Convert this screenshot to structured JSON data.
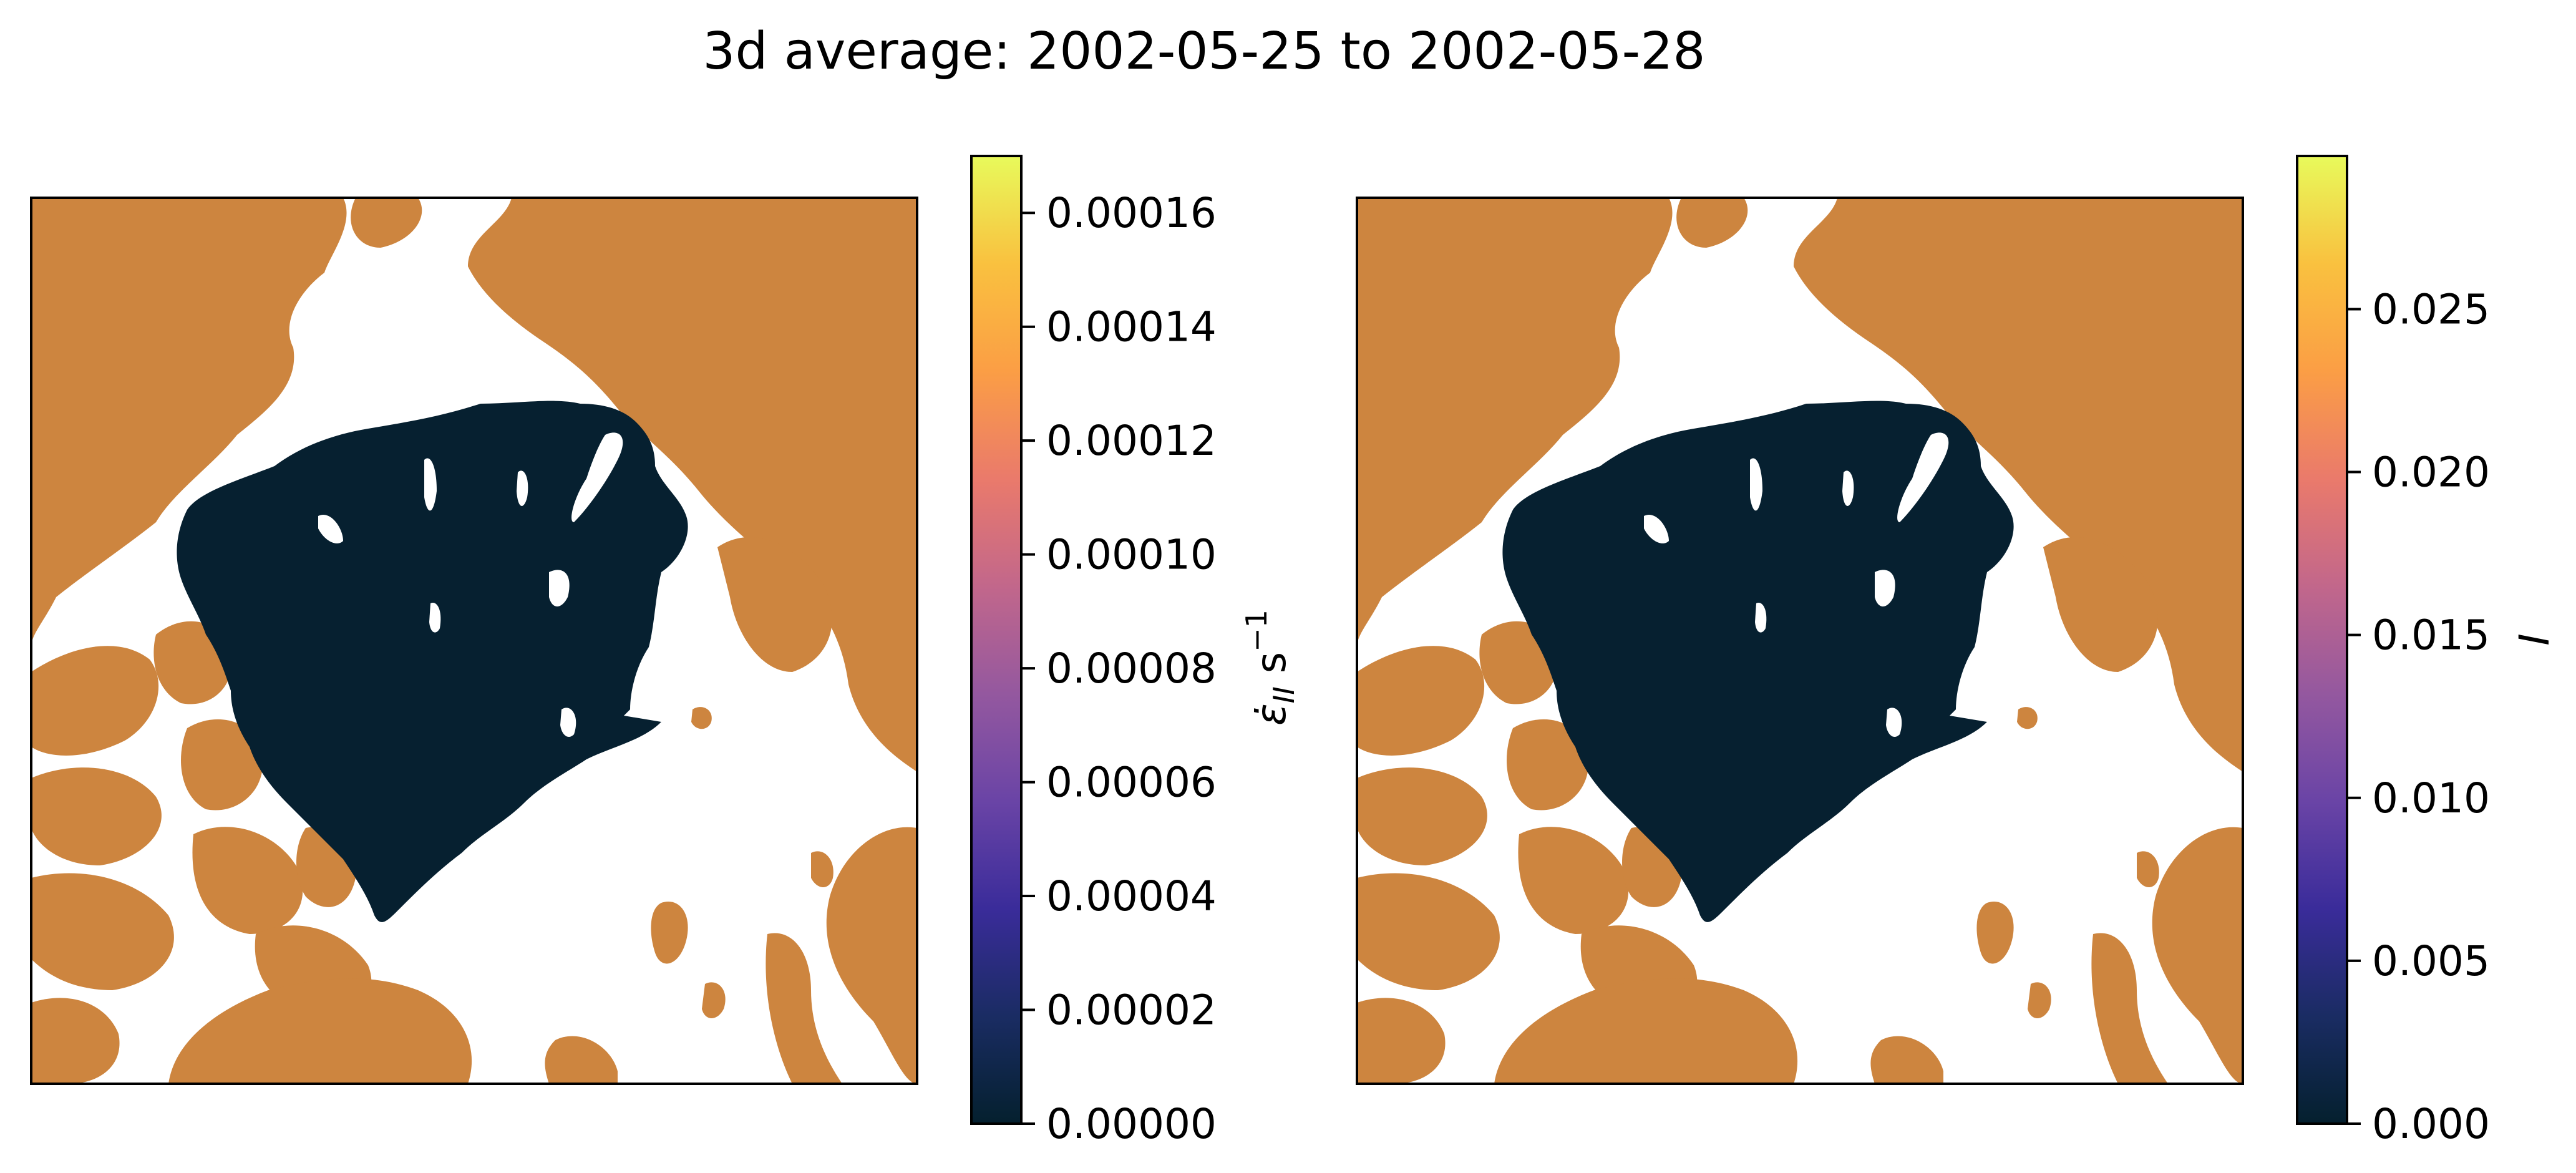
{
  "figure": {
    "title": "3d average: 2002-05-25 to 2002-05-28"
  },
  "colors": {
    "land": "#cd853f",
    "ice_field": "#062030",
    "background": "#ffffff",
    "frame": "#000000"
  },
  "colormap": {
    "name": "thermal",
    "stops": [
      "#04202e",
      "#1a2c63",
      "#3a2c9a",
      "#6a44a6",
      "#94589f",
      "#c2678b",
      "#ea7a6b",
      "#fb9e45",
      "#f9c13f",
      "#e8fa5b"
    ]
  },
  "chart_data": [
    {
      "type": "heatmap",
      "map": "Arctic sea ice deformation rate",
      "values_displayed": "uniformly at colorbar minimum",
      "value": 0.0,
      "colorbar": {
        "label": "ε̇_II s⁻¹",
        "label_main": "ε̇",
        "label_sub": "II",
        "label_unit": " s",
        "label_sup": "−1",
        "range": [
          0.0,
          0.00017
        ],
        "ticks": [
          0.0,
          2e-05,
          4e-05,
          6e-05,
          8e-05,
          0.0001,
          0.00012,
          0.00014,
          0.00016
        ],
        "tick_labels": [
          "0.00000",
          "0.00002",
          "0.00004",
          "0.00006",
          "0.00008",
          "0.00010",
          "0.00012",
          "0.00014",
          "0.00016"
        ]
      }
    },
    {
      "type": "heatmap",
      "map": "Arctic sea ice intermittency",
      "values_displayed": "uniformly at colorbar minimum",
      "value": 0.0,
      "colorbar": {
        "label": "I",
        "range": [
          0.0,
          0.0297
        ],
        "ticks": [
          0.0,
          0.005,
          0.01,
          0.015,
          0.02,
          0.025
        ],
        "tick_labels": [
          "0.000",
          "0.005",
          "0.010",
          "0.015",
          "0.020",
          "0.025"
        ]
      }
    }
  ]
}
